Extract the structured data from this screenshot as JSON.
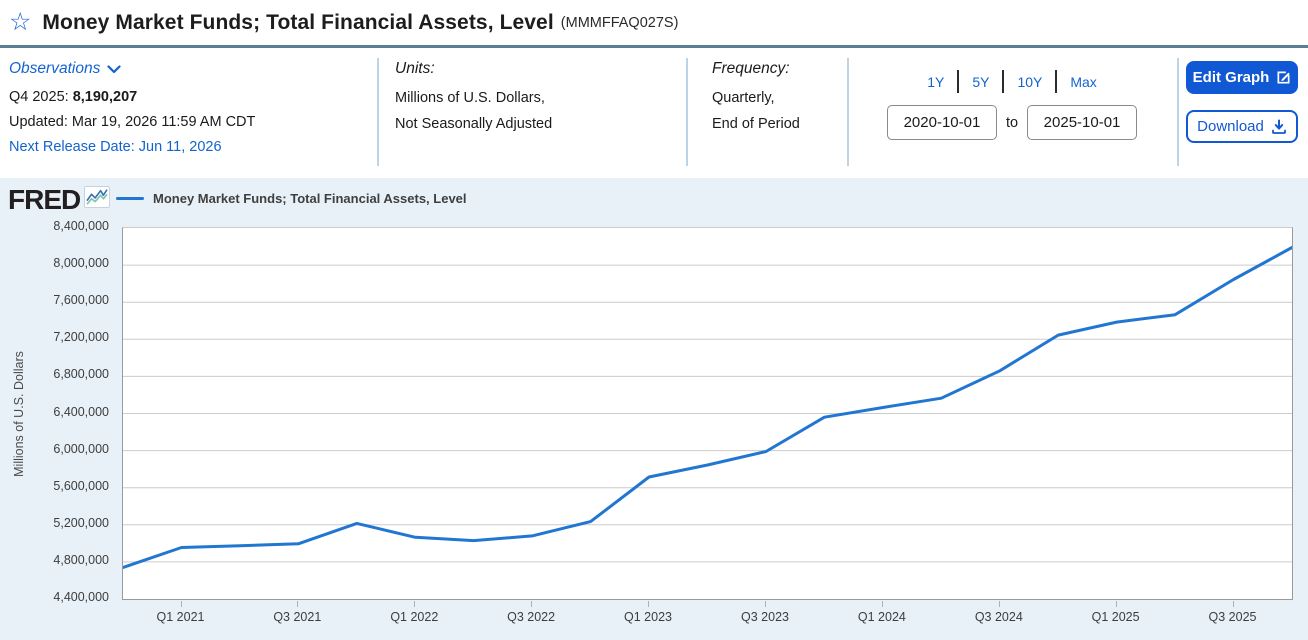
{
  "page": {
    "title": "Money Market Funds; Total Financial Assets, Level",
    "series_id": "(MMMFFAQ027S)"
  },
  "icons": {
    "star_glyph": "☆",
    "favorite_star": "star-outline",
    "observations_chevron": "chevron-down",
    "edit": "edit-pencil-square",
    "download": "download-arrow-tray",
    "logo_chart": "fred-line-chart-mark"
  },
  "observations": {
    "label": "Observations",
    "latest_period": "Q4 2025:",
    "latest_value": "8,190,207",
    "updated": "Updated: Mar 19, 2026 11:59 AM CDT",
    "next_release": "Next Release Date: Jun 11, 2026"
  },
  "units": {
    "label": "Units:",
    "line1": "Millions of U.S. Dollars,",
    "line2": "Not Seasonally Adjusted"
  },
  "frequency": {
    "label": "Frequency:",
    "line1": "Quarterly,",
    "line2": "End of Period"
  },
  "range": {
    "buttons": [
      "1Y",
      "5Y",
      "10Y",
      "Max"
    ],
    "start": "2020-10-01",
    "to_label": "to",
    "end": "2025-10-01"
  },
  "actions": {
    "edit": "Edit Graph",
    "download": "Download"
  },
  "brand": {
    "logo": "FRED"
  },
  "legend": {
    "label": "Money Market Funds; Total Financial Assets, Level"
  },
  "colors": {
    "accent_button": "#1158d4",
    "link_blue": "#1363cf",
    "line_blue": "#2176d2",
    "title_rule": "#5b7d92",
    "graph_background": "#e8f1f8",
    "grid": "#cccccc"
  },
  "chart_data": {
    "type": "line",
    "title": "Money Market Funds; Total Financial Assets, Level",
    "ylabel": "Millions of U.S. Dollars",
    "xlabel": "",
    "legend_position": "top-left",
    "grid": true,
    "ylim": [
      4400000,
      8400000
    ],
    "y_tick_step": 400000,
    "y_tick_labels": [
      "8,400,000",
      "8,000,000",
      "7,600,000",
      "7,200,000",
      "6,800,000",
      "6,400,000",
      "6,000,000",
      "5,600,000",
      "5,200,000",
      "4,800,000",
      "4,400,000"
    ],
    "categories": [
      "Q4 2020",
      "Q1 2021",
      "Q2 2021",
      "Q3 2021",
      "Q4 2021",
      "Q1 2022",
      "Q2 2022",
      "Q3 2022",
      "Q4 2022",
      "Q1 2023",
      "Q2 2023",
      "Q3 2023",
      "Q4 2023",
      "Q1 2024",
      "Q2 2024",
      "Q3 2024",
      "Q4 2024",
      "Q1 2025",
      "Q2 2025",
      "Q3 2025",
      "Q4 2025"
    ],
    "values": [
      4740000,
      4955000,
      4975000,
      4995000,
      5215000,
      5065000,
      5030000,
      5080000,
      5235000,
      5715000,
      5845000,
      5990000,
      6360000,
      6465000,
      6565000,
      6860000,
      7245000,
      7385000,
      7465000,
      7845000,
      8190207
    ],
    "x_ticks": [
      {
        "q": 1,
        "label": "Q1 2021"
      },
      {
        "q": 3,
        "label": "Q3 2021"
      },
      {
        "q": 5,
        "label": "Q1 2022"
      },
      {
        "q": 7,
        "label": "Q3 2022"
      },
      {
        "q": 9,
        "label": "Q1 2023"
      },
      {
        "q": 11,
        "label": "Q3 2023"
      },
      {
        "q": 13,
        "label": "Q1 2024"
      },
      {
        "q": 15,
        "label": "Q3 2024"
      },
      {
        "q": 17,
        "label": "Q1 2025"
      },
      {
        "q": 19,
        "label": "Q3 2025"
      }
    ],
    "line_color": "#2176d2",
    "grid_color": "#cccccc"
  }
}
